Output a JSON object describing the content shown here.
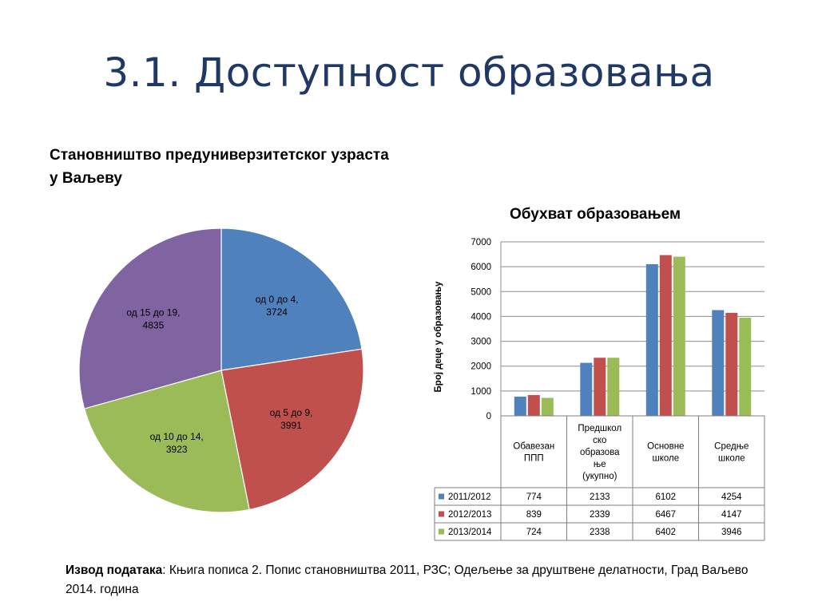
{
  "slide": {
    "title": "3.1. Доступност образовања",
    "source_label": "Извод података",
    "source_text": ": Књига пописа 2. Попис становништва 2011, РЗС; Одељење за друштвене делатности, Град Ваљево 2014. година"
  },
  "chart_data": [
    {
      "type": "pie",
      "title": "Становништво предуниверзитетског узраста у Ваљеву",
      "slices": [
        {
          "label": "од 0 до 4,",
          "value": 3724,
          "color": "#4f81bd"
        },
        {
          "label": "од 5 до 9,",
          "value": 3991,
          "color": "#c0504d"
        },
        {
          "label": "од 10 до 14,",
          "value": 3923,
          "color": "#9bbb59"
        },
        {
          "label": "од 15 до 19,",
          "value": 4835,
          "color": "#8064a2"
        }
      ]
    },
    {
      "type": "bar",
      "title": "Обухват образовањем",
      "ylabel": "Број деце у образовању",
      "ylim": [
        0,
        7000
      ],
      "yticks": [
        0,
        1000,
        2000,
        3000,
        4000,
        5000,
        6000,
        7000
      ],
      "grid": true,
      "categories": [
        [
          "Обавезан",
          "ППП"
        ],
        [
          "Предшкол",
          "ско",
          "образова",
          "ње",
          "(укупно)"
        ],
        [
          "Основне",
          "школе"
        ],
        [
          "Средње",
          "школе"
        ]
      ],
      "series": [
        {
          "name": "2011/2012",
          "color": "#4f81bd",
          "values": [
            774,
            2133,
            6102,
            4254
          ]
        },
        {
          "name": "2012/2013",
          "color": "#c0504d",
          "values": [
            839,
            2339,
            6467,
            4147
          ]
        },
        {
          "name": "2013/2014",
          "color": "#9bbb59",
          "values": [
            724,
            2338,
            6402,
            3946
          ]
        }
      ]
    }
  ]
}
